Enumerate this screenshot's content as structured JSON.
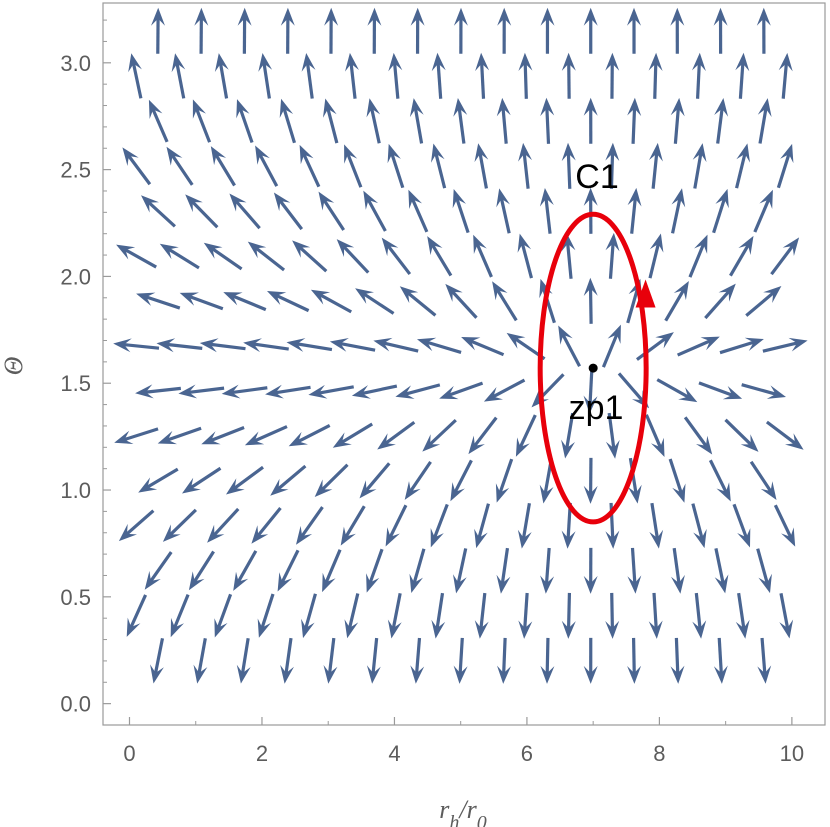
{
  "chart_data": {
    "type": "vector-field",
    "xlabel": "r_h/r_0",
    "ylabel": "Θ",
    "xlim": [
      -0.4,
      10.5
    ],
    "ylim": [
      -0.1,
      3.28
    ],
    "xticks": [
      "0",
      "2",
      "4",
      "6",
      "8",
      "10"
    ],
    "xtick_values": [
      0,
      2,
      4,
      6,
      8,
      10
    ],
    "yticks": [
      "0.0",
      "0.5",
      "1.0",
      "1.5",
      "2.0",
      "2.5",
      "3.0"
    ],
    "ytick_values": [
      0.0,
      0.5,
      1.0,
      1.5,
      2.0,
      2.5,
      3.0
    ],
    "grid": false,
    "arrow_color": "#4a6591",
    "field": {
      "description": "unit vector field with a zero point at zp1",
      "zero_point": [
        7.0,
        1.5708
      ],
      "sample_x_range": [
        0.1,
        9.9
      ],
      "sample_y_range": [
        0.2,
        3.15
      ]
    },
    "zero_point": {
      "label": "zp1",
      "x": 7.0,
      "y": 1.5708
    },
    "contour": {
      "label": "C1",
      "center": [
        7.0,
        1.5708
      ],
      "rx": 0.8,
      "ry": 0.72,
      "color": "#e8000b",
      "direction": "counterclockwise"
    }
  }
}
